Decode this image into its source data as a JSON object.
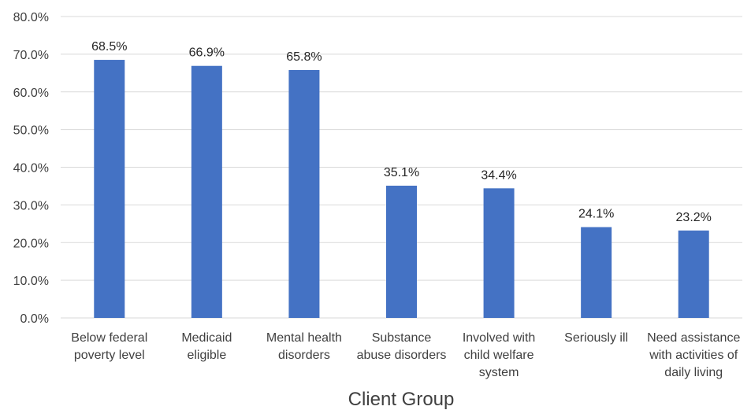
{
  "chart_data": {
    "type": "bar",
    "title": "",
    "xlabel": "Client Group",
    "ylabel": "",
    "ylim": [
      0,
      80
    ],
    "y_ticks": [
      "0.0%",
      "10.0%",
      "20.0%",
      "30.0%",
      "40.0%",
      "50.0%",
      "60.0%",
      "70.0%",
      "80.0%"
    ],
    "grid": true,
    "legend": "none",
    "bar_color": "#4472C4",
    "categories": [
      [
        "Below federal",
        "poverty level"
      ],
      [
        "Medicaid",
        "eligible"
      ],
      [
        "Mental health",
        "disorders"
      ],
      [
        "Substance",
        "abuse disorders"
      ],
      [
        "Involved with",
        "child welfare",
        "system"
      ],
      [
        "Seriously ill"
      ],
      [
        "Need assistance",
        "with activities of",
        "daily living"
      ]
    ],
    "values": [
      68.5,
      66.9,
      65.8,
      35.1,
      34.4,
      24.1,
      23.2
    ],
    "data_labels": [
      "68.5%",
      "66.9%",
      "65.8%",
      "35.1%",
      "34.4%",
      "24.1%",
      "23.2%"
    ]
  }
}
